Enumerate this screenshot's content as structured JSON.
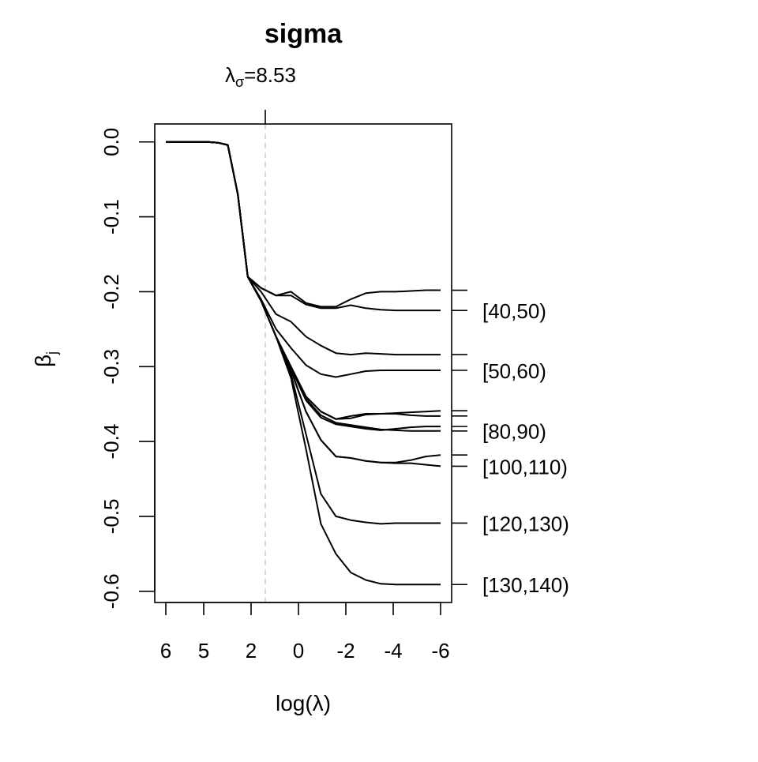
{
  "chart_data": {
    "type": "line",
    "title": "sigma",
    "annotation": {
      "prefix": "λ",
      "subscript": "σ",
      "value_text": "=8.53",
      "log_lambda": 1.4
    },
    "xlabel": {
      "prefix": "log(",
      "symbol": "λ",
      "suffix": ")"
    },
    "ylabel": {
      "symbol": "β",
      "subscript": "j"
    },
    "x_ticks": [
      {
        "value": 6,
        "label": "6"
      },
      {
        "value": 5,
        "label": "5"
      },
      {
        "value": 2,
        "label": "2"
      },
      {
        "value": 0,
        "label": "0"
      },
      {
        "value": -2,
        "label": "-2"
      },
      {
        "value": -4,
        "label": "-4"
      },
      {
        "value": -6,
        "label": "-6"
      }
    ],
    "y_ticks": [
      {
        "value": 0.0,
        "label": "0.0"
      },
      {
        "value": -0.1,
        "label": "-0.1"
      },
      {
        "value": -0.2,
        "label": "-0.2"
      },
      {
        "value": -0.3,
        "label": "-0.3"
      },
      {
        "value": -0.4,
        "label": "-0.4"
      },
      {
        "value": -0.5,
        "label": "-0.5"
      },
      {
        "value": -0.6,
        "label": "-0.6"
      }
    ],
    "ylim": [
      -0.615,
      0.024
    ],
    "grid": false,
    "line_color": "#000000",
    "annotation_line_color": "#cccccc",
    "series": [
      {
        "name": "",
        "values": [
          0,
          0,
          0,
          -0.001,
          -0.004,
          -0.07,
          -0.18,
          -0.195,
          -0.205,
          -0.2,
          -0.215,
          -0.22,
          -0.22,
          -0.21,
          -0.202,
          -0.2,
          -0.2,
          -0.199,
          -0.198,
          -0.198
        ]
      },
      {
        "name": "[40,50)",
        "values": [
          0,
          0,
          0,
          -0.001,
          -0.004,
          -0.07,
          -0.18,
          -0.195,
          -0.205,
          -0.205,
          -0.217,
          -0.222,
          -0.222,
          -0.218,
          -0.222,
          -0.224,
          -0.225,
          -0.225,
          -0.225,
          -0.225
        ]
      },
      {
        "name": "",
        "values": [
          0,
          0,
          0,
          -0.001,
          -0.004,
          -0.07,
          -0.18,
          -0.2,
          -0.23,
          -0.24,
          -0.26,
          -0.272,
          -0.282,
          -0.284,
          -0.282,
          -0.283,
          -0.284,
          -0.284,
          -0.284,
          -0.284
        ]
      },
      {
        "name": "[50,60)",
        "values": [
          0,
          0,
          0,
          -0.001,
          -0.004,
          -0.07,
          -0.18,
          -0.21,
          -0.25,
          -0.275,
          -0.298,
          -0.31,
          -0.314,
          -0.31,
          -0.306,
          -0.305,
          -0.305,
          -0.305,
          -0.305,
          -0.305
        ]
      },
      {
        "name": "",
        "values": [
          0,
          0,
          0,
          -0.001,
          -0.004,
          -0.07,
          -0.18,
          -0.212,
          -0.26,
          -0.3,
          -0.34,
          -0.36,
          -0.37,
          -0.366,
          -0.363,
          -0.363,
          -0.362,
          -0.361,
          -0.36,
          -0.359
        ]
      },
      {
        "name": "",
        "values": [
          0,
          0,
          0,
          -0.001,
          -0.004,
          -0.07,
          -0.18,
          -0.212,
          -0.26,
          -0.3,
          -0.34,
          -0.36,
          -0.37,
          -0.369,
          -0.364,
          -0.363,
          -0.363,
          -0.365,
          -0.366,
          -0.366
        ]
      },
      {
        "name": "[80,90)",
        "values": [
          0,
          0,
          0,
          -0.001,
          -0.004,
          -0.07,
          -0.18,
          -0.212,
          -0.26,
          -0.302,
          -0.343,
          -0.365,
          -0.375,
          -0.378,
          -0.381,
          -0.384,
          -0.385,
          -0.386,
          -0.386,
          -0.386
        ]
      },
      {
        "name": "",
        "values": [
          0,
          0,
          0,
          -0.001,
          -0.004,
          -0.07,
          -0.18,
          -0.212,
          -0.26,
          -0.302,
          -0.345,
          -0.368,
          -0.377,
          -0.38,
          -0.383,
          -0.385,
          -0.383,
          -0.381,
          -0.38,
          -0.38
        ]
      },
      {
        "name": "",
        "values": [
          0,
          0,
          0,
          -0.001,
          -0.004,
          -0.07,
          -0.18,
          -0.212,
          -0.26,
          -0.305,
          -0.36,
          -0.398,
          -0.42,
          -0.422,
          -0.426,
          -0.428,
          -0.428,
          -0.425,
          -0.42,
          -0.418
        ]
      },
      {
        "name": "[100,110)",
        "values": [
          0,
          0,
          0,
          -0.001,
          -0.004,
          -0.07,
          -0.18,
          -0.212,
          -0.26,
          -0.305,
          -0.36,
          -0.398,
          -0.42,
          -0.422,
          -0.426,
          -0.428,
          -0.429,
          -0.429,
          -0.431,
          -0.433
        ]
      },
      {
        "name": "[120,130)",
        "values": [
          0,
          0,
          0,
          -0.001,
          -0.004,
          -0.07,
          -0.18,
          -0.212,
          -0.26,
          -0.31,
          -0.39,
          -0.47,
          -0.5,
          -0.505,
          -0.508,
          -0.51,
          -0.509,
          -0.509,
          -0.509,
          -0.509
        ]
      },
      {
        "name": "[130,140)",
        "values": [
          0,
          0,
          0,
          -0.001,
          -0.004,
          -0.07,
          -0.18,
          -0.212,
          -0.26,
          -0.315,
          -0.41,
          -0.51,
          -0.55,
          -0.575,
          -0.585,
          -0.59,
          -0.591,
          -0.591,
          -0.591,
          -0.591
        ]
      }
    ]
  }
}
